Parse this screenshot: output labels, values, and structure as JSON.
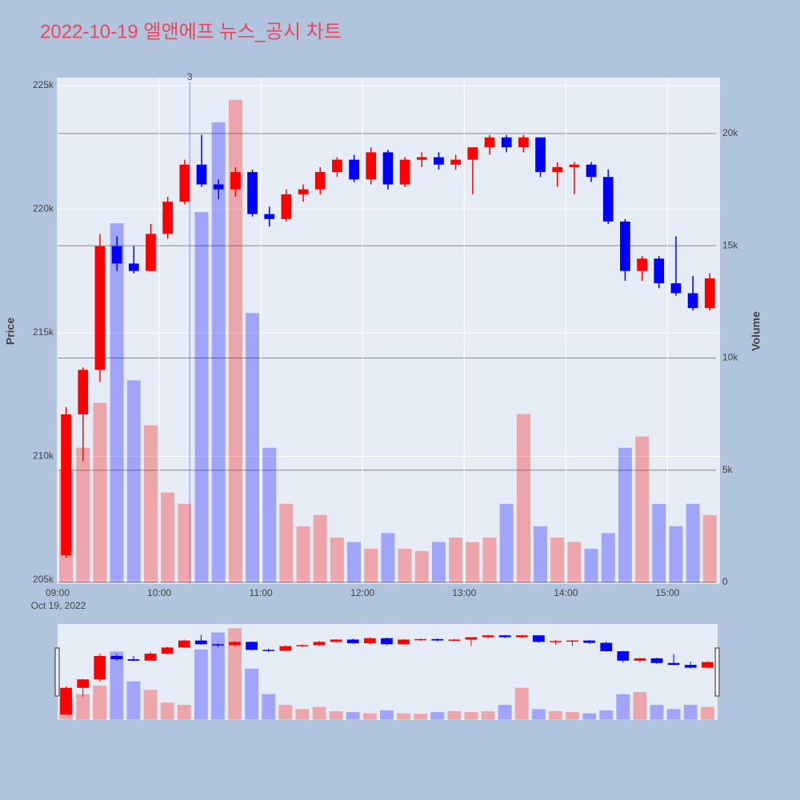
{
  "chart_data": {
    "type": "candlestick",
    "title": "2022-10-19 엘앤에프 뉴스_공시 차트",
    "y_label": "Price",
    "y2_label": "Volume",
    "x_date_label": "Oct 19, 2022",
    "x": [
      "09:00",
      "09:10",
      "09:20",
      "09:30",
      "09:40",
      "09:50",
      "10:00",
      "10:10",
      "10:20",
      "10:30",
      "10:40",
      "10:50",
      "11:00",
      "11:10",
      "11:20",
      "11:30",
      "11:40",
      "11:50",
      "12:00",
      "12:10",
      "12:20",
      "12:30",
      "12:40",
      "12:50",
      "13:00",
      "13:10",
      "13:20",
      "13:30",
      "13:40",
      "13:50",
      "14:00",
      "14:10",
      "14:20",
      "14:30",
      "14:40",
      "14:50",
      "15:00",
      "15:10",
      "15:20"
    ],
    "open": [
      206000,
      211700,
      213500,
      218500,
      217800,
      217500,
      219000,
      220300,
      221800,
      221000,
      220800,
      221500,
      219800,
      219600,
      220600,
      220800,
      221500,
      222000,
      221200,
      222300,
      221000,
      222000,
      222100,
      221800,
      222000,
      222500,
      222900,
      222500,
      222900,
      221500,
      221700,
      221800,
      221300,
      219500,
      217500,
      218000,
      217000,
      216600,
      216000
    ],
    "high": [
      212000,
      213600,
      219000,
      218900,
      218500,
      219400,
      220500,
      222000,
      223000,
      221200,
      221700,
      221600,
      220100,
      220800,
      221000,
      221700,
      222100,
      222200,
      222500,
      222400,
      222100,
      222300,
      222300,
      222200,
      222500,
      223000,
      223000,
      223000,
      222900,
      221900,
      221900,
      221900,
      221600,
      219600,
      218100,
      218100,
      218900,
      217300,
      217400
    ],
    "low": [
      205900,
      209800,
      213000,
      217500,
      217400,
      217500,
      218800,
      220200,
      220900,
      220400,
      220500,
      219700,
      219300,
      219500,
      220300,
      220600,
      221300,
      221100,
      221000,
      220800,
      220900,
      221700,
      221600,
      221600,
      220600,
      222200,
      222300,
      222300,
      221300,
      220900,
      220600,
      221100,
      219400,
      217100,
      217100,
      216800,
      216500,
      215900,
      215900
    ],
    "close": [
      211700,
      213500,
      218500,
      217800,
      217500,
      219000,
      220300,
      221800,
      221000,
      220800,
      221500,
      219800,
      219600,
      220600,
      220800,
      221500,
      222000,
      221200,
      222300,
      221000,
      222000,
      222100,
      221800,
      222000,
      222500,
      222900,
      222500,
      222900,
      221500,
      221700,
      221800,
      221300,
      219500,
      217500,
      218000,
      217000,
      216600,
      216000,
      217200
    ],
    "volume": [
      5000,
      6000,
      8000,
      16000,
      9000,
      7000,
      4000,
      3500,
      16500,
      20500,
      21500,
      12000,
      6000,
      3500,
      2500,
      3000,
      2000,
      1800,
      1500,
      2200,
      1500,
      1400,
      1800,
      2000,
      1800,
      2000,
      3500,
      7500,
      2500,
      2000,
      1800,
      1500,
      2200,
      6000,
      6500,
      3500,
      2500,
      3500,
      3000
    ],
    "increasing_color": "#ff0000",
    "decreasing_color": "#0000ff",
    "xlim": [
      "09:00",
      "15:31"
    ],
    "xticks": [
      "09:00",
      "10:00",
      "11:00",
      "12:00",
      "13:00",
      "14:00",
      "15:00"
    ],
    "ylim": [
      204840,
      225320
    ],
    "yticks": [
      {
        "value": 205000,
        "label": "205k"
      },
      {
        "value": 210000,
        "label": "210k"
      },
      {
        "value": 215000,
        "label": "215k"
      },
      {
        "value": 220000,
        "label": "220k"
      },
      {
        "value": 225000,
        "label": "225k"
      }
    ],
    "y2lim": [
      -70,
      22490
    ],
    "y2ticks": [
      0,
      {
        "value": 5000,
        "label": "5k"
      },
      {
        "value": 10000,
        "label": "10k"
      },
      {
        "value": 15000,
        "label": "15k"
      },
      {
        "value": 20000,
        "label": "20k"
      }
    ],
    "grid": true,
    "annotations": [
      {
        "x": "10:18",
        "text": "3"
      }
    ]
  }
}
